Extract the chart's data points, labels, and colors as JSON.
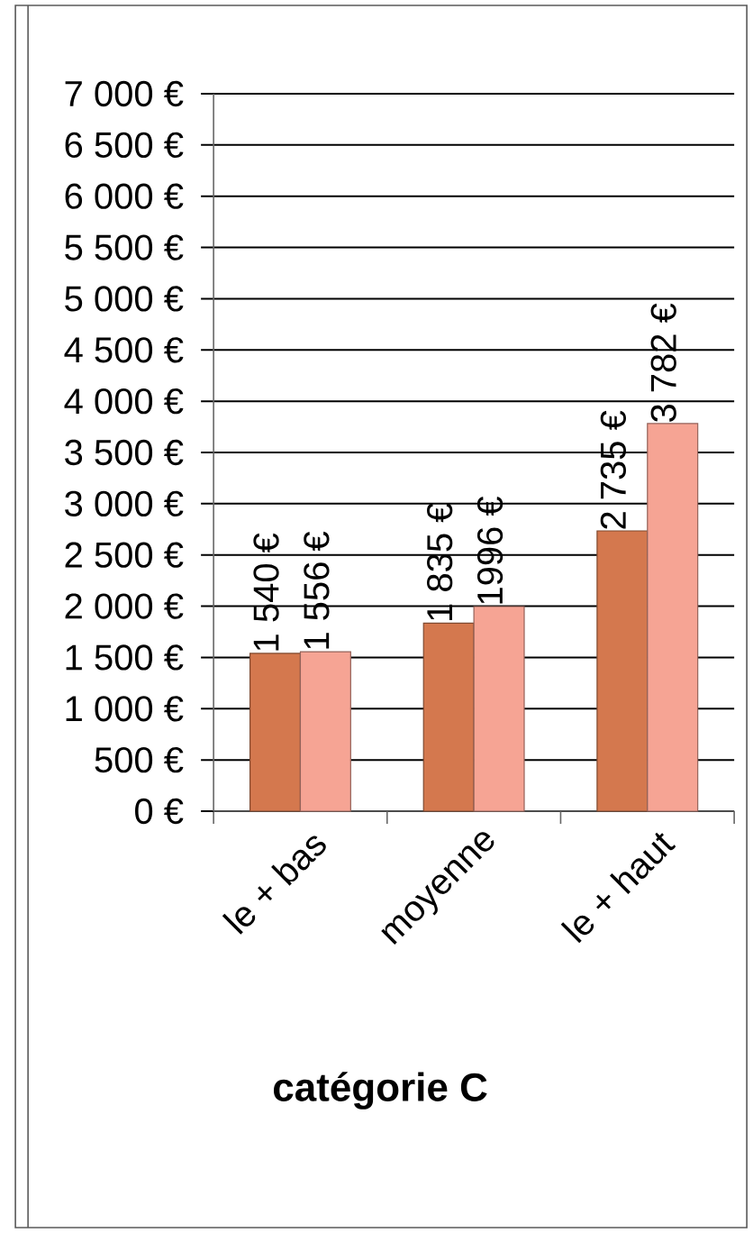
{
  "chart_data": {
    "type": "bar",
    "xlabel": "catégorie C",
    "categories": [
      "le + bas",
      "moyenne",
      "le + haut"
    ],
    "series": [
      {
        "color": "#d4784e",
        "values": [
          1540,
          1835,
          2735
        ],
        "value_labels": [
          "1 540 €",
          "1 835 €",
          "2 735 €"
        ]
      },
      {
        "color": "#f6a494",
        "values": [
          1556,
          1996,
          3782
        ],
        "value_labels": [
          "1 556 €",
          "1996 €",
          "3 782 €"
        ]
      }
    ],
    "ylim": [
      0,
      7000
    ],
    "yticks": [
      {
        "value": 0,
        "label": "0 €"
      },
      {
        "value": 500,
        "label": "500 €"
      },
      {
        "value": 1000,
        "label": "1 000 €"
      },
      {
        "value": 1500,
        "label": "1 500 €"
      },
      {
        "value": 2000,
        "label": "2 000 €"
      },
      {
        "value": 2500,
        "label": "2 500 €"
      },
      {
        "value": 3000,
        "label": "3 000 €"
      },
      {
        "value": 3500,
        "label": "3 500 €"
      },
      {
        "value": 4000,
        "label": "4 000 €"
      },
      {
        "value": 4500,
        "label": "4 500 €"
      },
      {
        "value": 5000,
        "label": "5 000 €"
      },
      {
        "value": 5500,
        "label": "5 500 €"
      },
      {
        "value": 6000,
        "label": "6 000 €"
      },
      {
        "value": 6500,
        "label": "6 500 €"
      },
      {
        "value": 7000,
        "label": "7 000 €"
      }
    ],
    "grid": "y"
  }
}
